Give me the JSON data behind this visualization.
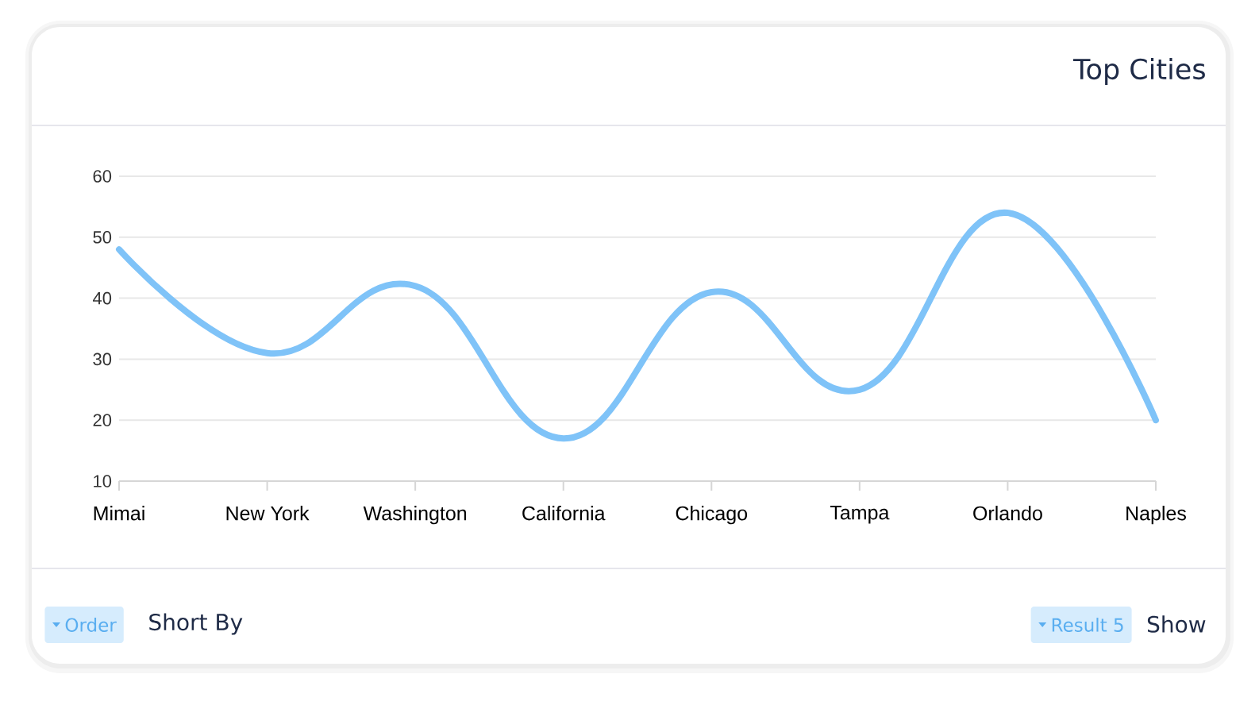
{
  "chart_data": {
    "type": "line",
    "title": "Top Cities",
    "categories": [
      "Mimai",
      "New York",
      "Washington",
      "California",
      "Chicago",
      "Tampa",
      "Orlando",
      "Naples"
    ],
    "series": [
      {
        "color": "#7fc3f8",
        "values": [
          48,
          31,
          42,
          17,
          41,
          25,
          54,
          20
        ]
      }
    ],
    "ylim": [
      10,
      60
    ],
    "yticks": [
      10,
      20,
      30,
      40,
      50,
      60
    ],
    "grid": "y",
    "marker": "none",
    "line_style": "solid",
    "annotations": [
      "Order",
      "Short By",
      "Result 5",
      "Show"
    ]
  }
}
